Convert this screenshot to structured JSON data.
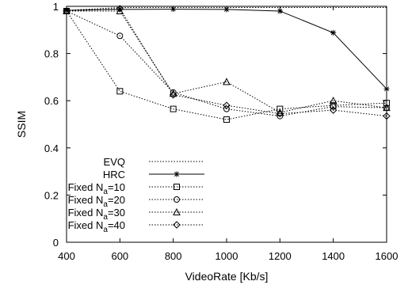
{
  "chart_data": {
    "type": "line",
    "xlabel": "VideoRate [Kb/s]",
    "ylabel": "SSIM",
    "xlim": [
      400,
      1600
    ],
    "ylim": [
      0,
      1
    ],
    "x_ticks": [
      "400",
      "600",
      "800",
      "1000",
      "1200",
      "1400",
      "1600"
    ],
    "y_ticks": [
      "0",
      "0.2",
      "0.4",
      "0.6",
      "0.8",
      "1"
    ],
    "grid": false,
    "legend_placement": "bottom-left",
    "x": [
      400,
      600,
      800,
      1000,
      1200,
      1400,
      1600
    ],
    "series": [
      {
        "name": "EVQ",
        "legend_main": "EVQ",
        "legend_sub": "",
        "legend_tail": "",
        "marker": "none",
        "dash": "dotted",
        "values": [
          0.983,
          0.995,
          0.995,
          0.995,
          0.995,
          0.995,
          0.995
        ]
      },
      {
        "name": "HRC",
        "legend_main": "HRC",
        "legend_sub": "",
        "legend_tail": "",
        "marker": "star",
        "dash": "solid",
        "values": [
          0.983,
          0.987,
          0.988,
          0.987,
          0.98,
          0.888,
          0.65
        ]
      },
      {
        "name": "Fixed Na=10",
        "legend_main": "Fixed N",
        "legend_sub": "a",
        "legend_tail": "=10",
        "marker": "square",
        "dash": "dotted",
        "values": [
          0.98,
          0.64,
          0.565,
          0.52,
          0.565,
          0.58,
          0.59
        ]
      },
      {
        "name": "Fixed Na=20",
        "legend_main": "Fixed N",
        "legend_sub": "a",
        "legend_tail": "=20",
        "marker": "circle",
        "dash": "dotted",
        "values": [
          0.98,
          0.875,
          0.635,
          0.565,
          0.535,
          0.575,
          0.57
        ]
      },
      {
        "name": "Fixed Na=30",
        "legend_main": "Fixed N",
        "legend_sub": "a",
        "legend_tail": "=30",
        "marker": "triangle",
        "dash": "dotted",
        "values": [
          0.98,
          0.98,
          0.63,
          0.68,
          0.55,
          0.6,
          0.57
        ]
      },
      {
        "name": "Fixed Na=40",
        "legend_main": "Fixed N",
        "legend_sub": "a",
        "legend_tail": "=40",
        "marker": "diamond",
        "dash": "dotted",
        "values": [
          0.98,
          0.99,
          0.625,
          0.58,
          0.545,
          0.56,
          0.535
        ]
      }
    ]
  }
}
